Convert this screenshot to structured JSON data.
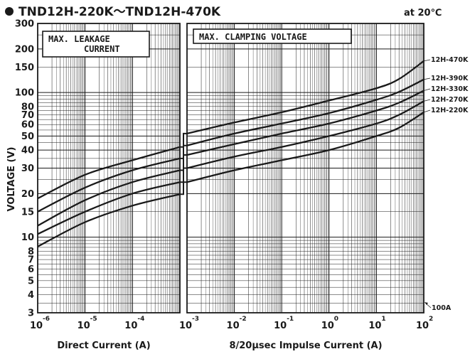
{
  "chart_data": {
    "type": "line",
    "title": "TND12H-220K〜TND12H-470K",
    "condition": "at 20℃",
    "ylabel": "VOLTAGE (V)",
    "yscale": "log",
    "ylim": [
      3,
      300
    ],
    "yticks": [
      "3",
      "4",
      "5",
      "6",
      "7",
      "8",
      "10",
      "15",
      "20",
      "30",
      "40",
      "50",
      "60",
      "70",
      "80",
      "100",
      "150",
      "200",
      "300"
    ],
    "grid": true,
    "panels": [
      {
        "name": "leakage",
        "box_label_lines": [
          "MAX.  LEAKAGE",
          "CURRENT"
        ],
        "xlabel": "Direct  Current  (A)",
        "xscale": "log",
        "xlim": [
          1e-06,
          0.001
        ],
        "xticks": [
          {
            "value": 1e-06,
            "base": "10",
            "exp": "-6"
          },
          {
            "value": 1e-05,
            "base": "10",
            "exp": "-5"
          },
          {
            "value": 0.0001,
            "base": "10",
            "exp": "-4"
          }
        ],
        "series": [
          {
            "x": [
              1e-06,
              1e-05,
              0.0001,
              0.001
            ],
            "y": [
              18.5,
              27,
              34,
              42
            ]
          },
          {
            "x": [
              1e-06,
              1e-05,
              0.0001,
              0.001
            ],
            "y": [
              15,
              22,
              29,
              35
            ]
          },
          {
            "x": [
              1e-06,
              1e-05,
              0.0001,
              0.001
            ],
            "y": [
              12,
              18,
              24,
              29
            ]
          },
          {
            "x": [
              1e-06,
              1e-05,
              0.0001,
              0.001
            ],
            "y": [
              10.5,
              15,
              20,
              24
            ]
          },
          {
            "x": [
              1e-06,
              1e-05,
              0.0001,
              0.001
            ],
            "y": [
              8.6,
              12.7,
              16.5,
              19.8
            ]
          }
        ]
      },
      {
        "name": "clamping",
        "box_label_lines": [
          "MAX.  CLAMPING  VOLTAGE"
        ],
        "xlabel": "8/20µsec  Impulse  Current  (A)",
        "xscale": "log",
        "xlim": [
          0.001,
          100
        ],
        "xticks": [
          {
            "value": 0.001,
            "base": "10",
            "exp": "-3"
          },
          {
            "value": 0.01,
            "base": "10",
            "exp": "-2"
          },
          {
            "value": 0.1,
            "base": "10",
            "exp": "-1"
          },
          {
            "value": 1,
            "base": "10",
            "exp": "0"
          },
          {
            "value": 10,
            "base": "10",
            "exp": "1"
          },
          {
            "value": 100,
            "base": "10",
            "exp": "2"
          }
        ],
        "series": [
          {
            "name": "12H-470K",
            "x": [
              0.001,
              0.01,
              0.1,
              1,
              10,
              30,
              100
            ],
            "y": [
              52,
              62,
              73,
              88,
              107,
              124,
              165
            ]
          },
          {
            "name": "12H-390K",
            "x": [
              0.001,
              0.01,
              0.1,
              1,
              10,
              30,
              100
            ],
            "y": [
              43,
              52,
              61,
              72,
              89,
              101,
              123
            ]
          },
          {
            "name": "12H-330K",
            "x": [
              0.001,
              0.01,
              0.1,
              1,
              10,
              30,
              100
            ],
            "y": [
              37,
              44,
              52,
              61,
              75,
              85,
              103
            ]
          },
          {
            "name": "12H-270K",
            "x": [
              0.001,
              0.01,
              0.1,
              1,
              10,
              30,
              100
            ],
            "y": [
              30,
              36,
              42,
              50,
              61,
              70,
              87
            ]
          },
          {
            "name": "12H-220K",
            "x": [
              0.001,
              0.01,
              0.1,
              1,
              10,
              30,
              100
            ],
            "y": [
              24,
              29,
              34,
              40,
              50,
              57,
              73
            ]
          }
        ],
        "annotation": {
          "text": "100A",
          "x": 100,
          "y": 3
        }
      }
    ]
  }
}
